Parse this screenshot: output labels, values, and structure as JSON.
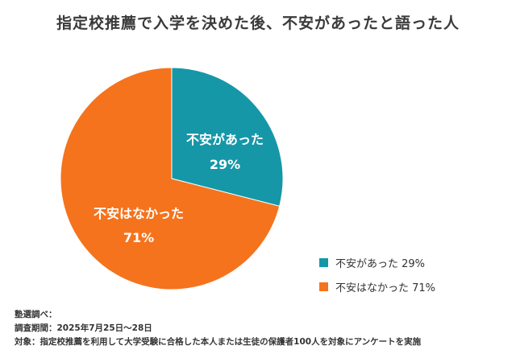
{
  "chart_data": {
    "type": "pie",
    "title": "指定校推薦で入学を決めた後、不安があったと語った人",
    "slices": [
      {
        "name": "不安があった",
        "label": "不安があった",
        "value": 29,
        "value_label": "29%",
        "legend_label": "不安があった 29%",
        "color": "#1597A8"
      },
      {
        "name": "不安はなかった",
        "label": "不安はなかった",
        "value": 71,
        "value_label": "71%",
        "legend_label": "不安はなかった 71%",
        "color": "#F5731C"
      }
    ],
    "legend_position": "bottom-right"
  },
  "footer": {
    "line1": "塾選調べ：",
    "line2": "調査期間：2025年7月25日〜28日",
    "line3": "対象：指定校推薦を利用して大学受験に合格した本人または生徒の保護者100人を対象にアンケートを実施"
  }
}
